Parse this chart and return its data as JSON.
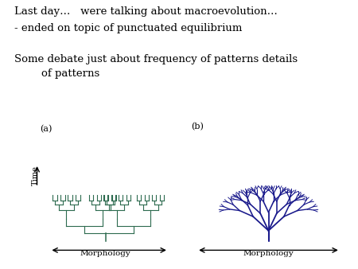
{
  "title_line1": "Last day…   were talking about macroevolution…",
  "title_line2": "- ended on topic of punctuated equilibrium",
  "subtitle_line1": "Some debate just about frequency of patterns details",
  "subtitle_line2": "        of patterns",
  "background_color": "#ffffff",
  "diagram_a_color": "#2d6b4f",
  "diagram_b_color": "#1a1a8c",
  "text_color": "#000000",
  "label_a": "(a)",
  "label_b": "(b)",
  "xlabel": "Morphology",
  "ylabel": "Time",
  "font_size_title": 9.5,
  "font_size_sub": 9.5
}
